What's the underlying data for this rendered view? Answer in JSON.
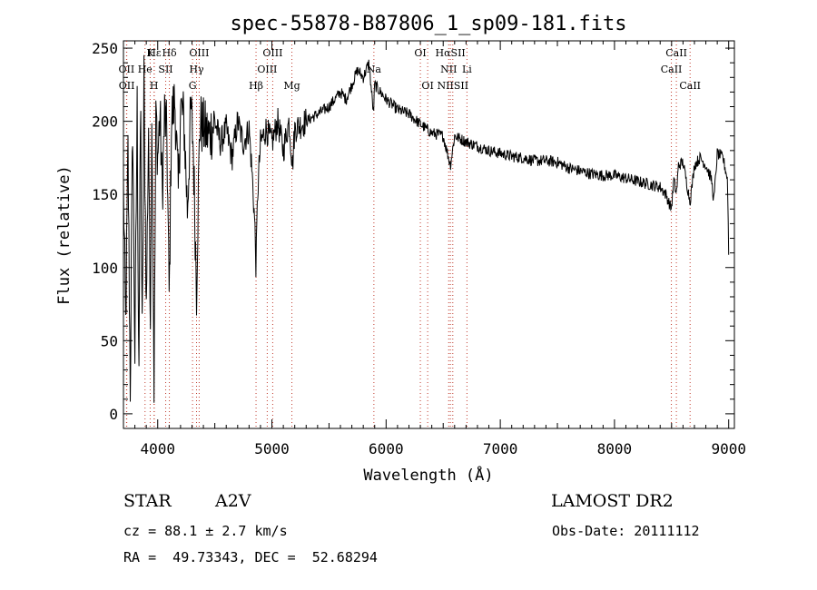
{
  "chart_data": {
    "type": "line",
    "title": "spec-55878-B87806_1_sp09-181.fits",
    "xlabel": "Wavelength (Å)",
    "ylabel": "Flux (relative)",
    "xlim": [
      3700,
      9050
    ],
    "ylim": [
      -10,
      255
    ],
    "x_ticks": [
      4000,
      5000,
      6000,
      7000,
      8000,
      9000
    ],
    "y_ticks": [
      0,
      50,
      100,
      150,
      200,
      250
    ],
    "grid": false,
    "line_color": "#000000",
    "marker_color": "#c0392b",
    "spectrum": {
      "name": "",
      "anchors": [
        [
          3700,
          155
        ],
        [
          3720,
          60
        ],
        [
          3740,
          180
        ],
        [
          3760,
          20
        ],
        [
          3780,
          200
        ],
        [
          3800,
          40
        ],
        [
          3820,
          210
        ],
        [
          3835,
          25
        ],
        [
          3850,
          220
        ],
        [
          3865,
          40
        ],
        [
          3880,
          230
        ],
        [
          3900,
          70
        ],
        [
          3920,
          200
        ],
        [
          3934,
          60
        ],
        [
          3950,
          210
        ],
        [
          3968,
          20
        ],
        [
          3985,
          210
        ],
        [
          4000,
          175
        ],
        [
          4020,
          205
        ],
        [
          4040,
          150
        ],
        [
          4060,
          205
        ],
        [
          4080,
          190
        ],
        [
          4101,
          75
        ],
        [
          4120,
          200
        ],
        [
          4150,
          215
        ],
        [
          4180,
          150
        ],
        [
          4200,
          210
        ],
        [
          4230,
          200
        ],
        [
          4260,
          140
        ],
        [
          4290,
          210
        ],
        [
          4310,
          185
        ],
        [
          4330,
          120
        ],
        [
          4340,
          85
        ],
        [
          4350,
          130
        ],
        [
          4370,
          200
        ],
        [
          4400,
          195
        ],
        [
          4450,
          190
        ],
        [
          4500,
          200
        ],
        [
          4550,
          185
        ],
        [
          4600,
          195
        ],
        [
          4650,
          175
        ],
        [
          4700,
          200
        ],
        [
          4750,
          185
        ],
        [
          4800,
          195
        ],
        [
          4830,
          160
        ],
        [
          4850,
          130
        ],
        [
          4861,
          100
        ],
        [
          4875,
          150
        ],
        [
          4900,
          185
        ],
        [
          4950,
          195
        ],
        [
          5000,
          185
        ],
        [
          5050,
          200
        ],
        [
          5100,
          180
        ],
        [
          5150,
          200
        ],
        [
          5180,
          170
        ],
        [
          5200,
          195
        ],
        [
          5300,
          200
        ],
        [
          5400,
          205
        ],
        [
          5500,
          210
        ],
        [
          5600,
          220
        ],
        [
          5650,
          215
        ],
        [
          5700,
          225
        ],
        [
          5750,
          235
        ],
        [
          5800,
          230
        ],
        [
          5850,
          240
        ],
        [
          5890,
          205
        ],
        [
          5900,
          225
        ],
        [
          5950,
          220
        ],
        [
          6000,
          215
        ],
        [
          6100,
          208
        ],
        [
          6200,
          205
        ],
        [
          6300,
          198
        ],
        [
          6400,
          192
        ],
        [
          6500,
          190
        ],
        [
          6563,
          170
        ],
        [
          6600,
          190
        ],
        [
          6700,
          186
        ],
        [
          6800,
          183
        ],
        [
          6900,
          180
        ],
        [
          7000,
          178
        ],
        [
          7100,
          176
        ],
        [
          7200,
          175
        ],
        [
          7300,
          173
        ],
        [
          7400,
          173
        ],
        [
          7500,
          172
        ],
        [
          7600,
          168
        ],
        [
          7700,
          166
        ],
        [
          7800,
          164
        ],
        [
          7900,
          163
        ],
        [
          8000,
          163
        ],
        [
          8100,
          161
        ],
        [
          8200,
          159
        ],
        [
          8300,
          157
        ],
        [
          8400,
          155
        ],
        [
          8450,
          150
        ],
        [
          8498,
          140
        ],
        [
          8520,
          160
        ],
        [
          8542,
          150
        ],
        [
          8560,
          170
        ],
        [
          8600,
          172
        ],
        [
          8662,
          145
        ],
        [
          8700,
          170
        ],
        [
          8750,
          175
        ],
        [
          8800,
          170
        ],
        [
          8850,
          160
        ],
        [
          8870,
          145
        ],
        [
          8900,
          178
        ],
        [
          8950,
          175
        ],
        [
          8990,
          160
        ],
        [
          9000,
          110
        ]
      ]
    },
    "lines": [
      {
        "label": "Hε",
        "x": 3970,
        "row": 0
      },
      {
        "label": "K",
        "x": 3934,
        "row": 0
      },
      {
        "label": "Hδ",
        "x": 4102,
        "row": 0
      },
      {
        "label": "OIII",
        "x": 4363,
        "row": 0
      },
      {
        "label": "OIII",
        "x": 5007,
        "row": 0
      },
      {
        "label": "OI",
        "x": 6300,
        "row": 0
      },
      {
        "label": "HαSII",
        "x": 6563,
        "row": 0
      },
      {
        "label": "CaII",
        "x": 8542,
        "row": 0
      },
      {
        "label": "OII",
        "x": 3727,
        "row": 1
      },
      {
        "label": "He",
        "x": 3889,
        "row": 1
      },
      {
        "label": "SII",
        "x": 4070,
        "row": 1
      },
      {
        "label": "Hγ",
        "x": 4340,
        "row": 1
      },
      {
        "label": "OIII",
        "x": 4959,
        "row": 1
      },
      {
        "label": "Na",
        "x": 5893,
        "row": 1
      },
      {
        "label": "NII",
        "x": 6548,
        "row": 1
      },
      {
        "label": "Li",
        "x": 6708,
        "row": 1
      },
      {
        "label": "CaII",
        "x": 8498,
        "row": 1
      },
      {
        "label": "OII",
        "x": 3729,
        "row": 2
      },
      {
        "label": "H",
        "x": 3968,
        "row": 2
      },
      {
        "label": "G",
        "x": 4305,
        "row": 2
      },
      {
        "label": "Hβ",
        "x": 4861,
        "row": 2
      },
      {
        "label": "Mg",
        "x": 5175,
        "row": 2
      },
      {
        "label": "OI",
        "x": 6364,
        "row": 2
      },
      {
        "label": "NIISII",
        "x": 6584,
        "row": 2
      },
      {
        "label": "CaII",
        "x": 8662,
        "row": 2
      }
    ]
  },
  "info": {
    "object_class": "STAR",
    "subclass": "A2V",
    "survey": "LAMOST DR2",
    "cz": "cz = 88.1 ± 2.7 km/s",
    "obs_date": "Obs-Date: 20111112",
    "coords": "RA =  49.73343, DEC =  52.68294"
  }
}
